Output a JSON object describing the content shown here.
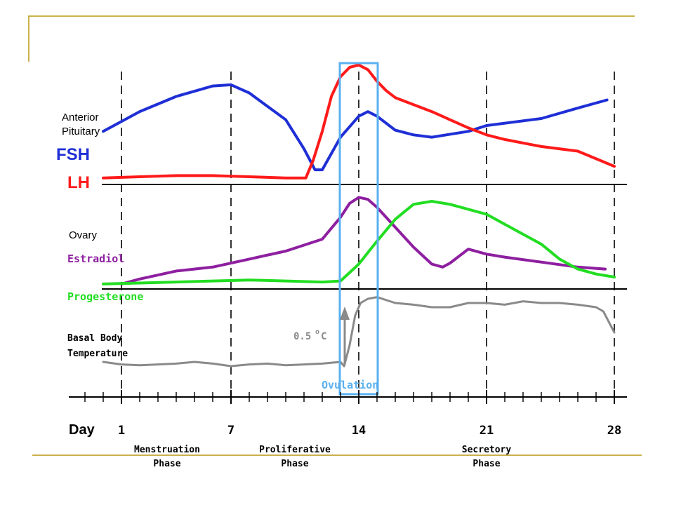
{
  "colors": {
    "frame": "#c9b24a",
    "fsh": "#1f2fd6",
    "lh": "#ff1a1a",
    "estradiol": "#8e1fa0",
    "progesterone": "#22dd22",
    "temperature": "#8a8a8a",
    "ovulation": "#5ab0f0",
    "axis": "#000000"
  },
  "labels": {
    "anterior_pituitary": [
      "Anterior",
      "Pituitary"
    ],
    "fsh": "FSH",
    "lh": "LH",
    "ovary": "Ovary",
    "estradiol": "Estradiol",
    "progesterone": "Progesterone",
    "bbt": [
      "Basal Body",
      "Temperature"
    ],
    "temp_rise": "0.5",
    "temp_rise_unit": "C",
    "degree_mark": "o",
    "ovulation": "Ovulation",
    "day_label": "Day"
  },
  "phases": [
    {
      "name": "Menstruation",
      "sub": "Phase",
      "day": 3.5
    },
    {
      "name": "Proliferative",
      "sub": "Phase",
      "day": 10.5
    },
    {
      "name": "Secretory",
      "sub": "Phase",
      "day": 21
    }
  ],
  "chart_data": {
    "type": "line",
    "x_unit": "day",
    "x_ticks": [
      1,
      7,
      14,
      21,
      28
    ],
    "xlim": [
      0,
      28
    ],
    "ovulation_window": [
      13,
      15
    ],
    "panels": [
      {
        "name": "Anterior Pituitary",
        "series": [
          {
            "name": "FSH",
            "key": "fsh",
            "points": [
              [
                0,
                0.45
              ],
              [
                2,
                0.62
              ],
              [
                4,
                0.75
              ],
              [
                6,
                0.84
              ],
              [
                7,
                0.85
              ],
              [
                8,
                0.78
              ],
              [
                10,
                0.55
              ],
              [
                11,
                0.3
              ],
              [
                11.6,
                0.12
              ],
              [
                12,
                0.12
              ],
              [
                13,
                0.4
              ],
              [
                14,
                0.58
              ],
              [
                14.5,
                0.62
              ],
              [
                15,
                0.58
              ],
              [
                16,
                0.46
              ],
              [
                17,
                0.42
              ],
              [
                18,
                0.4
              ],
              [
                20,
                0.45
              ],
              [
                21,
                0.5
              ],
              [
                24,
                0.56
              ],
              [
                26,
                0.65
              ],
              [
                27.6,
                0.72
              ]
            ]
          },
          {
            "name": "LH",
            "key": "lh",
            "points": [
              [
                0,
                0.05
              ],
              [
                2,
                0.06
              ],
              [
                4,
                0.07
              ],
              [
                6,
                0.07
              ],
              [
                8,
                0.06
              ],
              [
                10,
                0.05
              ],
              [
                11.1,
                0.05
              ],
              [
                11.5,
                0.2
              ],
              [
                12,
                0.45
              ],
              [
                12.5,
                0.75
              ],
              [
                13,
                0.92
              ],
              [
                13.5,
                1.0
              ],
              [
                14,
                1.02
              ],
              [
                14.5,
                0.98
              ],
              [
                15,
                0.88
              ],
              [
                15.5,
                0.8
              ],
              [
                16,
                0.74
              ],
              [
                18,
                0.62
              ],
              [
                20,
                0.48
              ],
              [
                21,
                0.42
              ],
              [
                22,
                0.38
              ],
              [
                24,
                0.32
              ],
              [
                26,
                0.28
              ],
              [
                28,
                0.15
              ]
            ]
          }
        ]
      },
      {
        "name": "Ovary",
        "series": [
          {
            "name": "Estradiol",
            "key": "estradiol",
            "points": [
              [
                1,
                0.05
              ],
              [
                2,
                0.1
              ],
              [
                4,
                0.18
              ],
              [
                6,
                0.22
              ],
              [
                8,
                0.3
              ],
              [
                10,
                0.38
              ],
              [
                12,
                0.5
              ],
              [
                13,
                0.72
              ],
              [
                13.5,
                0.86
              ],
              [
                14,
                0.92
              ],
              [
                14.5,
                0.9
              ],
              [
                15,
                0.82
              ],
              [
                16,
                0.62
              ],
              [
                17,
                0.42
              ],
              [
                18,
                0.25
              ],
              [
                18.6,
                0.22
              ],
              [
                19,
                0.26
              ],
              [
                20,
                0.4
              ],
              [
                21,
                0.35
              ],
              [
                22,
                0.32
              ],
              [
                24,
                0.27
              ],
              [
                26,
                0.22
              ],
              [
                27.5,
                0.2
              ]
            ]
          },
          {
            "name": "Progesterone",
            "key": "progesterone",
            "points": [
              [
                0,
                0.05
              ],
              [
                2,
                0.06
              ],
              [
                4,
                0.07
              ],
              [
                6,
                0.08
              ],
              [
                8,
                0.09
              ],
              [
                10,
                0.08
              ],
              [
                12,
                0.07
              ],
              [
                13,
                0.08
              ],
              [
                14,
                0.25
              ],
              [
                15,
                0.48
              ],
              [
                16,
                0.7
              ],
              [
                17,
                0.85
              ],
              [
                18,
                0.88
              ],
              [
                19,
                0.85
              ],
              [
                21,
                0.75
              ],
              [
                22,
                0.65
              ],
              [
                24,
                0.45
              ],
              [
                25,
                0.3
              ],
              [
                26,
                0.2
              ],
              [
                27,
                0.15
              ],
              [
                28,
                0.12
              ]
            ]
          }
        ]
      },
      {
        "name": "Basal Body Temperature",
        "series": [
          {
            "name": "Temperature",
            "key": "temperature",
            "points": [
              [
                0,
                0.2
              ],
              [
                1,
                0.17
              ],
              [
                2,
                0.16
              ],
              [
                3,
                0.17
              ],
              [
                4,
                0.18
              ],
              [
                5,
                0.2
              ],
              [
                6,
                0.18
              ],
              [
                7,
                0.15
              ],
              [
                8,
                0.17
              ],
              [
                9,
                0.18
              ],
              [
                10,
                0.16
              ],
              [
                11,
                0.17
              ],
              [
                12,
                0.18
              ],
              [
                13,
                0.2
              ],
              [
                13.2,
                0.15
              ],
              [
                13.5,
                0.4
              ],
              [
                13.8,
                0.75
              ],
              [
                14.1,
                0.9
              ],
              [
                14.5,
                0.95
              ],
              [
                15,
                0.97
              ],
              [
                16,
                0.9
              ],
              [
                17,
                0.88
              ],
              [
                18,
                0.85
              ],
              [
                19,
                0.85
              ],
              [
                20,
                0.9
              ],
              [
                21,
                0.9
              ],
              [
                22,
                0.88
              ],
              [
                23,
                0.92
              ],
              [
                24,
                0.9
              ],
              [
                25,
                0.9
              ],
              [
                26,
                0.88
              ],
              [
                27,
                0.85
              ],
              [
                27.4,
                0.8
              ],
              [
                28,
                0.55
              ]
            ]
          }
        ]
      }
    ]
  }
}
